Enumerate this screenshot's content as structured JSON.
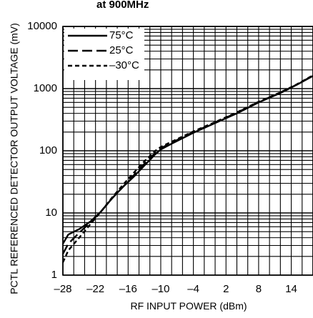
{
  "chart_data": {
    "type": "line",
    "title": "at 900MHz",
    "xlabel": "RF INPUT POWER (dBm)",
    "ylabel": "PCTL REFERENCED DETECTOR OUTPUT VOLTAGE (mV)",
    "xlim": [
      -28,
      18
    ],
    "ylim": [
      1,
      10000
    ],
    "yscale": "log",
    "xticks": [
      -28,
      -22,
      -16,
      -10,
      -4,
      2,
      8,
      14
    ],
    "xtick_labels": [
      "–28",
      "–22",
      "–16",
      "–10",
      "–4",
      "2",
      "8",
      "14"
    ],
    "yticks": [
      1,
      10,
      100,
      1000,
      10000
    ],
    "ytick_labels": [
      "1",
      "10",
      "100",
      "1000",
      "10000"
    ],
    "grid": true,
    "legend_position": "top-left",
    "series": [
      {
        "name": "75°C",
        "line_style": "solid",
        "x": [
          -28,
          -27,
          -25,
          -23,
          -21,
          -19,
          -17,
          -15,
          -13,
          -11,
          -10,
          -8,
          -4,
          0,
          4,
          8,
          12,
          15,
          18
        ],
        "y": [
          3.2,
          4.5,
          5.5,
          7.2,
          10.5,
          17,
          26,
          38,
          58,
          88,
          105,
          130,
          195,
          280,
          400,
          600,
          850,
          1150,
          1600
        ]
      },
      {
        "name": "25°C",
        "line_style": "dashed",
        "x": [
          -28,
          -27,
          -25,
          -23,
          -21,
          -19,
          -17,
          -15,
          -13,
          -11,
          -10,
          -8,
          -4,
          0,
          4,
          8,
          12,
          15,
          18
        ],
        "y": [
          2.2,
          3.2,
          4.8,
          7,
          10.5,
          17,
          26,
          40,
          62,
          92,
          110,
          135,
          200,
          285,
          410,
          610,
          860,
          1160,
          1620
        ]
      },
      {
        "name": "–30°C",
        "line_style": "short-dash",
        "x": [
          -28,
          -27,
          -25,
          -23,
          -21,
          -19,
          -17,
          -15,
          -13,
          -11,
          -10,
          -8,
          -4,
          0,
          4,
          8,
          12,
          15,
          18
        ],
        "y": [
          1.6,
          2.5,
          4,
          6.5,
          10.5,
          17.5,
          28,
          44,
          68,
          100,
          115,
          140,
          205,
          290,
          415,
          615,
          870,
          1170,
          1640
        ]
      }
    ]
  }
}
